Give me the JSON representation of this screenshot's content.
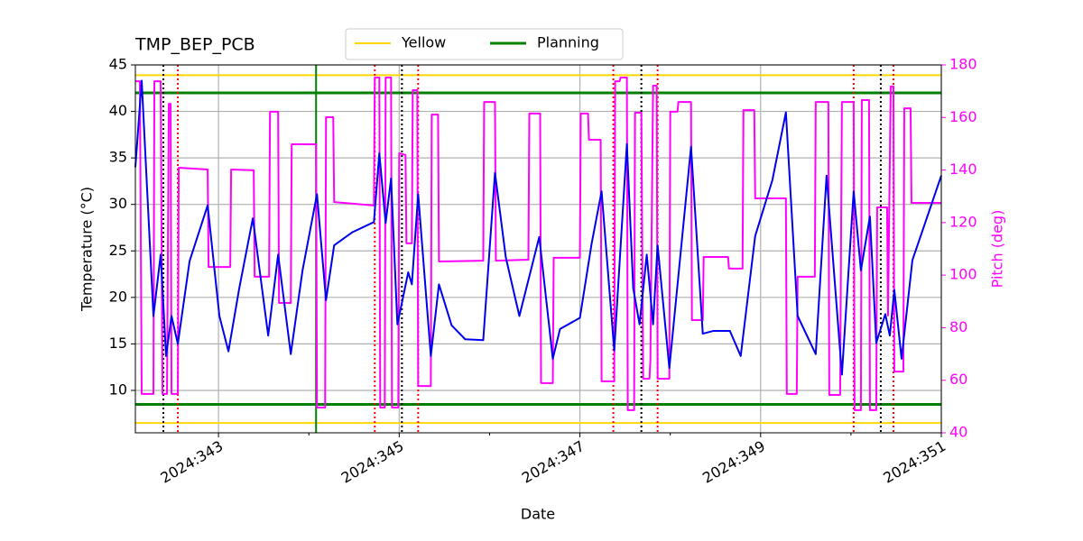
{
  "chart_data": {
    "type": "line",
    "title": "TMP_BEP_PCB",
    "x_label": "Date",
    "y_label": "Temperature (°C)",
    "y2_label": "Pitch (deg)",
    "xlim": [
      342.08,
      351
    ],
    "xticks": [
      {
        "value": 343,
        "label": "2024:343"
      },
      {
        "value": 345,
        "label": "2024:345"
      },
      {
        "value": 347,
        "label": "2024:347"
      },
      {
        "value": 349,
        "label": "2024:349"
      },
      {
        "value": 351,
        "label": "2024:351"
      }
    ],
    "xminorticks": [
      344,
      346,
      348,
      350
    ],
    "ylim": [
      5.44,
      45
    ],
    "yticks": [
      10,
      15,
      20,
      25,
      30,
      35,
      40,
      45
    ],
    "y2lim": [
      40,
      180
    ],
    "y2ticks": [
      40,
      60,
      80,
      100,
      120,
      140,
      160,
      180
    ],
    "y2_color": "#ff00ff",
    "grid": true,
    "legend": "upper center",
    "series": [
      {
        "color": "#0000ee",
        "x": [
          342.08,
          342.15,
          342.28,
          342.36,
          342.42,
          342.48,
          342.55,
          342.68,
          342.88,
          343.01,
          343.11,
          343.23,
          343.38,
          343.55,
          343.66,
          343.8,
          343.93,
          344.09,
          344.19,
          344.28,
          344.48,
          344.72,
          344.78,
          344.85,
          344.91,
          344.98,
          345.1,
          345.14,
          345.21,
          345.35,
          345.44,
          345.58,
          345.73,
          345.93,
          346.06,
          346.18,
          346.33,
          346.55,
          346.7,
          346.78,
          347.0,
          347.13,
          347.24,
          347.38,
          347.52,
          347.59,
          347.66,
          347.74,
          347.81,
          347.86,
          347.99,
          348.23,
          348.36,
          348.48,
          348.66,
          348.78,
          348.94,
          349.13,
          349.28,
          349.41,
          349.61,
          349.73,
          349.9,
          350.03,
          350.11,
          350.21,
          350.28,
          350.38,
          350.43,
          350.48,
          350.56,
          350.68,
          351.0
        ],
        "values": [
          34.0,
          43.3,
          18.0,
          24.6,
          13.7,
          18.0,
          15.0,
          23.9,
          29.9,
          18.0,
          14.2,
          21.0,
          28.5,
          15.9,
          24.6,
          13.9,
          22.9,
          31.1,
          19.7,
          25.6,
          27.0,
          28.1,
          35.5,
          28.0,
          32.8,
          17.1,
          22.7,
          21.4,
          31.1,
          13.7,
          21.4,
          17.0,
          15.5,
          15.4,
          33.4,
          24.3,
          18.0,
          26.5,
          13.4,
          16.6,
          17.8,
          25.8,
          31.4,
          14.3,
          36.5,
          21.0,
          17.1,
          24.6,
          17.1,
          25.6,
          12.4,
          36.2,
          16.1,
          16.4,
          16.4,
          13.7,
          26.6,
          32.6,
          39.9,
          18.0,
          13.9,
          33.1,
          11.7,
          31.4,
          22.9,
          28.7,
          15.1,
          18.2,
          15.9,
          20.8,
          13.4,
          24.0,
          33.1
        ]
      },
      {
        "color": "#ff00ff",
        "axis": "y2",
        "x": [
          342.08,
          342.13,
          342.15,
          342.28,
          342.29,
          342.36,
          342.38,
          342.43,
          342.45,
          342.47,
          342.48,
          342.55,
          342.56,
          342.88,
          342.89,
          343.13,
          343.14,
          343.39,
          343.4,
          343.56,
          343.57,
          343.66,
          343.67,
          343.8,
          343.81,
          344.08,
          344.09,
          344.18,
          344.19,
          344.27,
          344.28,
          344.72,
          344.73,
          344.78,
          344.79,
          344.84,
          344.85,
          344.91,
          344.92,
          344.99,
          345.0,
          345.07,
          345.08,
          345.14,
          345.15,
          345.2,
          345.21,
          345.35,
          345.36,
          345.43,
          345.44,
          345.93,
          345.94,
          346.06,
          346.07,
          346.43,
          346.44,
          346.56,
          346.57,
          346.7,
          346.71,
          347.0,
          347.01,
          347.09,
          347.1,
          347.23,
          347.24,
          347.38,
          347.39,
          347.44,
          347.45,
          347.52,
          347.53,
          347.6,
          347.61,
          347.68,
          347.7,
          347.77,
          347.78,
          347.81,
          347.85,
          347.86,
          347.99,
          348.0,
          348.08,
          348.09,
          348.23,
          348.24,
          348.36,
          348.37,
          348.64,
          348.65,
          348.8,
          348.81,
          348.93,
          348.94,
          349.28,
          349.29,
          349.4,
          349.41,
          349.6,
          349.61,
          349.75,
          349.76,
          349.88,
          349.9,
          350.03,
          350.04,
          350.11,
          350.12,
          350.2,
          350.21,
          350.28,
          350.29,
          350.4,
          350.41,
          350.44,
          350.47,
          350.48,
          350.58,
          350.59,
          350.66,
          350.67,
          351.0
        ],
        "values": [
          173.8,
          173.8,
          54.8,
          54.8,
          173.8,
          173.8,
          54.8,
          54.8,
          165.2,
          165.2,
          54.8,
          54.8,
          140.9,
          140.2,
          103.1,
          103.1,
          140.2,
          139.9,
          99.4,
          99.4,
          162.2,
          162.2,
          89.4,
          89.4,
          149.8,
          149.8,
          49.6,
          49.6,
          160.1,
          160.1,
          127.8,
          126.5,
          175.2,
          175.2,
          49.6,
          49.6,
          175.2,
          175.2,
          49.6,
          49.6,
          146.4,
          145.7,
          112.1,
          112.1,
          170.4,
          170.4,
          57.8,
          57.8,
          161.1,
          161.1,
          105.2,
          105.5,
          165.9,
          165.9,
          105.5,
          105.9,
          161.5,
          161.5,
          58.9,
          58.9,
          106.6,
          106.6,
          161.5,
          161.5,
          151.5,
          151.5,
          59.6,
          59.6,
          173.8,
          173.8,
          175.2,
          175.2,
          48.6,
          48.6,
          161.8,
          161.8,
          60.6,
          60.6,
          67.5,
          172.1,
          172.1,
          60.6,
          60.6,
          162.2,
          162.2,
          165.9,
          165.9,
          82.9,
          82.9,
          106.9,
          106.9,
          102.5,
          102.5,
          162.8,
          162.8,
          129.2,
          129.2,
          54.8,
          54.8,
          99.4,
          99.4,
          165.9,
          165.9,
          54.4,
          54.4,
          165.9,
          165.9,
          48.6,
          48.6,
          166.6,
          166.6,
          48.6,
          48.6,
          125.8,
          125.8,
          84.6,
          171.8,
          171.8,
          63.3,
          63.3,
          163.5,
          163.5,
          127.5,
          127.5
        ]
      }
    ],
    "limit_lines": [
      {
        "name": "Yellow",
        "color": "#ffd700",
        "values": [
          43.9,
          6.5
        ]
      },
      {
        "name": "Planning",
        "color": "#008000",
        "values": [
          42.0,
          8.5
        ]
      }
    ],
    "vlines": [
      {
        "color": "#008000",
        "style": "solid",
        "x": [
          344.08
        ]
      },
      {
        "color": "#000000",
        "style": "dotted",
        "x": [
          342.39,
          345.03,
          347.68,
          350.33
        ]
      },
      {
        "color": "#ff0000",
        "style": "dotted",
        "x": [
          342.55,
          344.73,
          345.21,
          347.37,
          347.86,
          350.03,
          350.47
        ]
      }
    ]
  }
}
